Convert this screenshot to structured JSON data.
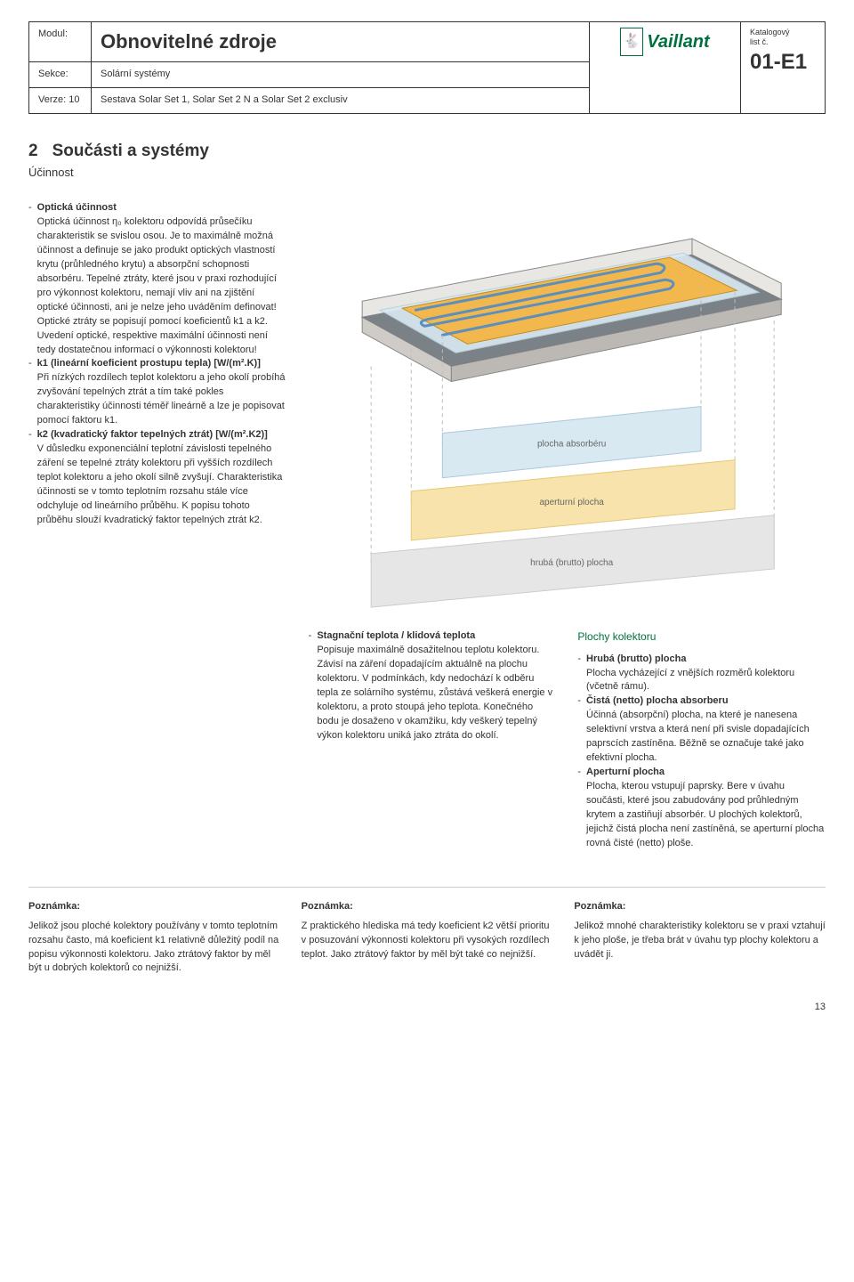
{
  "header": {
    "labels": {
      "modul": "Modul:",
      "sekce": "Sekce:",
      "verze": "Verze: 10"
    },
    "title_main": "Obnovitelné zdroje",
    "title_sekce": "Solární systémy",
    "title_verze": "Sestava Solar Set 1, Solar Set 2 N a Solar Set 2 exclusiv",
    "brand": "Vaillant",
    "code_label_1": "Katalogový",
    "code_label_2": "list č.",
    "code": "01-E1"
  },
  "section": {
    "num": "2",
    "title": "Součásti a systémy",
    "subtitle": "Účinnost"
  },
  "left": {
    "item1": {
      "title": "Optická účinnost",
      "body": "Optická účinnost η₀ kolektoru odpovídá průsečíku charakteristik se svislou osou. Je to maximálně možná účinnost a definuje se jako produkt optických vlastností krytu (průhledného krytu) a absorpční schopnosti absorbéru. Tepelné ztráty, které jsou v praxi rozhodující pro výkonnost kolektoru, nemají vliv ani na zjištění optické účinnosti, ani je nelze jeho uváděním definovat! Optické ztráty se popisují pomocí koeficientů k1 a k2. Uvedení optické, respektive maximální účinnosti není tedy dostatečnou informací o výkonnosti kolektoru!"
    },
    "item2": {
      "title": "k1 (lineární koeficient prostupu tepla) [W/(m².K)]",
      "body": "Při nízkých rozdílech teplot kolektoru a jeho okolí probíhá zvyšování tepelných ztrát a tím také pokles charakteristiky účinnosti téměř lineárně a lze je popisovat pomocí faktoru k1."
    },
    "item3": {
      "title": "k2 (kvadratický faktor tepelných ztrát) [W/(m².K2)]",
      "body": "V důsledku exponenciální teplotní závislosti tepelného záření se tepelné ztráty kolektoru při vyšších rozdílech teplot kolektoru a jeho okolí silně zvyšují. Charakteristika účinnosti se v tomto teplotním rozsahu stále více odchyluje od lineárního průběhu. K popisu tohoto průběhu slouží kvadratický faktor tepelných ztrát k2."
    }
  },
  "diagram": {
    "bg": "#ffffff",
    "frame_fill": "#e9e7e4",
    "frame_stroke": "#888888",
    "glass_fill": "#d9e9f2",
    "absorber_fill": "#f2b84e",
    "absorber_stroke": "#c28f1f",
    "tube_color": "#5d8fbd",
    "shadow_fill": "#7a8187",
    "layer1_fill": "#d9e9f2",
    "layer1_stroke": "#a9c9dd",
    "layer2_fill": "#f7e3ab",
    "layer2_stroke": "#e4c978",
    "layer3_fill": "#e6e6e6",
    "layer3_stroke": "#cccccc",
    "label_color": "#666666",
    "dash_color": "#bdbdbd",
    "label1": "plocha absorbéru",
    "label2": "aperturní plocha",
    "label3": "hrubá (brutto) plocha",
    "label_fontsize": 10
  },
  "middle": {
    "item1": {
      "title": "Stagnační teplota / klidová teplota",
      "body": "Popisuje maximálně dosažitelnou teplotu kolektoru. Závisí na záření dopadajícím aktuálně na plochu kolektoru. V podmínkách, kdy nedochází k odběru tepla ze solárního systému, zůstává veškerá energie v kolektoru, a proto stoupá jeho teplota. Konečného bodu je dosaženo v okamžiku, kdy veškerý tepelný výkon kolektoru uniká jako ztráta do okolí."
    }
  },
  "right": {
    "heading": "Plochy kolektoru",
    "item1": {
      "title": "Hrubá (brutto) plocha",
      "body": "Plocha vycházející z vnějších rozměrů kolektoru (včetně rámu)."
    },
    "item2": {
      "title": "Čistá (netto) plocha absorberu",
      "body": "Účinná (absorpční) plocha, na které je nanesena selektivní vrstva a která není při svisle dopadajících paprscích zastíněna. Běžně se označuje také jako efektivní plocha."
    },
    "item3": {
      "title": "Aperturní plocha",
      "body": "Plocha, kterou vstupují paprsky. Bere v úvahu součásti, které jsou zabudovány pod průhledným krytem a zastiňují absorbér. U plochých kolektorů, jejichž čistá plocha není zastíněná, se aperturní plocha rovná čisté (netto) ploše."
    }
  },
  "notes": {
    "label": "Poznámka:",
    "n1": "Jelikož jsou ploché kolektory používány v tomto teplotním rozsahu často, má koeficient k1 relativně důležitý podíl na popisu výkonnosti kolektoru. Jako ztrátový faktor by měl být u dobrých kolektorů co nejnižší.",
    "n2": "Z praktického hlediska má tedy koeficient k2 větší prioritu v posuzování výkonnosti kolektoru při vysokých rozdílech teplot. Jako ztrátový faktor by měl být také co nejnižší.",
    "n3": "Jelikož mnohé charakteristiky kolektoru se v praxi vztahují k jeho ploše, je třeba brát v úvahu typ plochy kolektoru a uvádět ji."
  },
  "page_number": "13"
}
